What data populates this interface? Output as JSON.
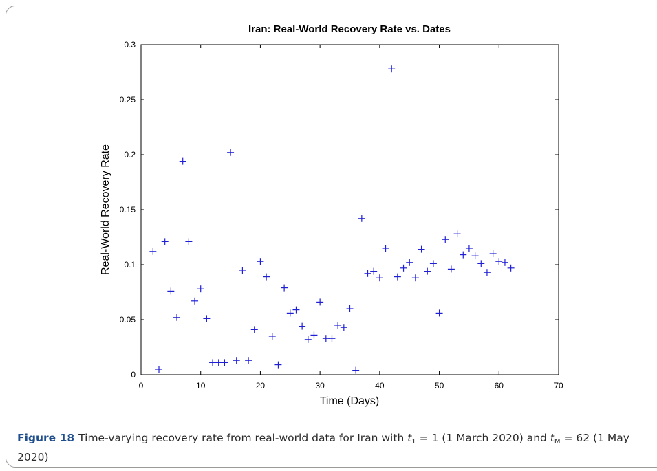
{
  "chart_data": {
    "type": "scatter",
    "title": "Iran: Real-World Recovery Rate vs. Dates",
    "xlabel": "Time (Days)",
    "ylabel": "Real-World Recovery Rate",
    "xlim": [
      0,
      70
    ],
    "ylim": [
      0,
      0.3
    ],
    "xticks": [
      0,
      10,
      20,
      30,
      40,
      50,
      60,
      70
    ],
    "xtick_labels": [
      "0",
      "10",
      "20",
      "30",
      "40",
      "50",
      "60",
      "70"
    ],
    "yticks": [
      0,
      0.05,
      0.1,
      0.15,
      0.2,
      0.25,
      0.3
    ],
    "ytick_labels": [
      "0",
      "0.05",
      "0.1",
      "0.15",
      "0.2",
      "0.25",
      "0.3"
    ],
    "grid": false,
    "marker": "+",
    "marker_color": "#1f1fd6",
    "x": [
      2,
      3,
      4,
      5,
      6,
      7,
      8,
      9,
      10,
      11,
      12,
      13,
      14,
      15,
      16,
      17,
      18,
      19,
      20,
      21,
      22,
      23,
      24,
      25,
      26,
      27,
      28,
      29,
      30,
      31,
      32,
      33,
      34,
      35,
      36,
      37,
      38,
      39,
      40,
      41,
      42,
      43,
      44,
      45,
      46,
      47,
      48,
      49,
      50,
      51,
      52,
      53,
      54,
      55,
      56,
      57,
      58,
      59,
      60,
      61,
      62
    ],
    "y": [
      0.112,
      0.005,
      0.121,
      0.076,
      0.052,
      0.194,
      0.121,
      0.067,
      0.078,
      0.051,
      0.011,
      0.011,
      0.011,
      0.202,
      0.013,
      0.095,
      0.013,
      0.041,
      0.103,
      0.089,
      0.035,
      0.009,
      0.079,
      0.056,
      0.059,
      0.044,
      0.032,
      0.036,
      0.066,
      0.033,
      0.033,
      0.045,
      0.043,
      0.06,
      0.004,
      0.142,
      0.092,
      0.094,
      0.088,
      0.115,
      0.278,
      0.089,
      0.097,
      0.102,
      0.088,
      0.114,
      0.094,
      0.101,
      0.056,
      0.123,
      0.096,
      0.128,
      0.109,
      0.115,
      0.108,
      0.101,
      0.093,
      0.11,
      0.103,
      0.102,
      0.097
    ]
  },
  "caption": {
    "label": "Figure 18",
    "text_1": "Time-varying recovery rate from real-world data for Iran with ",
    "t1_var": "t",
    "t1_sub": "1",
    "text_2": " = 1 (1 March 2020) and ",
    "tm_var": "t",
    "tm_sub": "M",
    "text_3": " = 62 (1 May 2020)"
  }
}
